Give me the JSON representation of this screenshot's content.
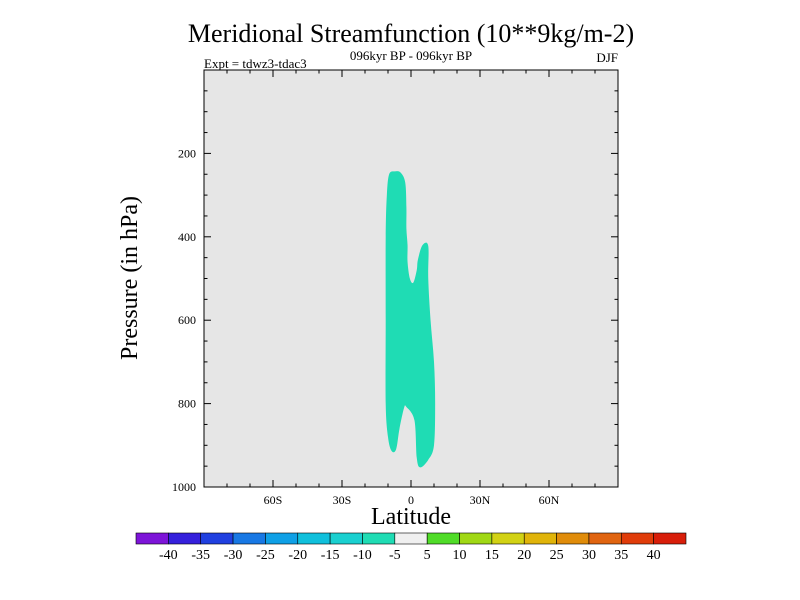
{
  "chart_data": {
    "type": "contour",
    "title": "Meridional Streamfunction (10**9kg/m-2)",
    "subtitle": "096kyr BP - 096kyr BP",
    "left_note": "Expt = tdwz3-tdac3",
    "right_note": "DJF",
    "xlabel": "Latitude",
    "ylabel": "Pressure (in hPa)",
    "xlim": [
      -90,
      90
    ],
    "ylim": [
      0,
      1000
    ],
    "y_reversed": true,
    "x_ticks": [
      {
        "value": -60,
        "label": "60S"
      },
      {
        "value": -30,
        "label": "30S"
      },
      {
        "value": 0,
        "label": "0"
      },
      {
        "value": 30,
        "label": "30N"
      },
      {
        "value": 60,
        "label": "60N"
      }
    ],
    "y_ticks": [
      {
        "value": 200,
        "label": "200"
      },
      {
        "value": 400,
        "label": "400"
      },
      {
        "value": 600,
        "label": "600"
      },
      {
        "value": 800,
        "label": "800"
      },
      {
        "value": 1000,
        "label": "1000"
      }
    ],
    "background_color": "#e6e6e6",
    "regions": [
      {
        "level_range": [
          -10,
          -5
        ],
        "color": "#1fdcb4",
        "outline": [
          [
            -9.5,
            250
          ],
          [
            -7,
            243
          ],
          [
            -4.5,
            246
          ],
          [
            -2.5,
            270
          ],
          [
            -2,
            330
          ],
          [
            -2,
            380
          ],
          [
            -1.5,
            420
          ],
          [
            -1.5,
            460
          ],
          [
            -0.5,
            500
          ],
          [
            1,
            510
          ],
          [
            2.5,
            480
          ],
          [
            3,
            455
          ],
          [
            5,
            420
          ],
          [
            7.5,
            422
          ],
          [
            7.5,
            500
          ],
          [
            8.5,
            600
          ],
          [
            10,
            700
          ],
          [
            10.5,
            800
          ],
          [
            10,
            900
          ],
          [
            7.5,
            935
          ],
          [
            4,
            953
          ],
          [
            2.5,
            930
          ],
          [
            1.5,
            840
          ],
          [
            -2,
            808
          ],
          [
            -3,
            810
          ],
          [
            -5,
            860
          ],
          [
            -6.5,
            910
          ],
          [
            -8.5,
            913
          ],
          [
            -10,
            880
          ],
          [
            -11,
            800
          ],
          [
            -11,
            600
          ],
          [
            -11,
            400
          ],
          [
            -10.5,
            300
          ]
        ]
      }
    ],
    "colorbar": {
      "labels": [
        "-40",
        "-35",
        "-30",
        "-25",
        "-20",
        "-15",
        "-10",
        "-5",
        "5",
        "10",
        "15",
        "20",
        "25",
        "30",
        "35",
        "40"
      ],
      "colors": [
        "#7d14d8",
        "#3520dc",
        "#2040e0",
        "#1878e4",
        "#0fa0e6",
        "#10c0dc",
        "#1ad0d0",
        "#1fdcb4",
        "#f0f0f0",
        "#50dc28",
        "#a0d814",
        "#d2d214",
        "#e0b40a",
        "#e08c0a",
        "#e06410",
        "#e03c0a",
        "#d81e0a"
      ]
    }
  }
}
